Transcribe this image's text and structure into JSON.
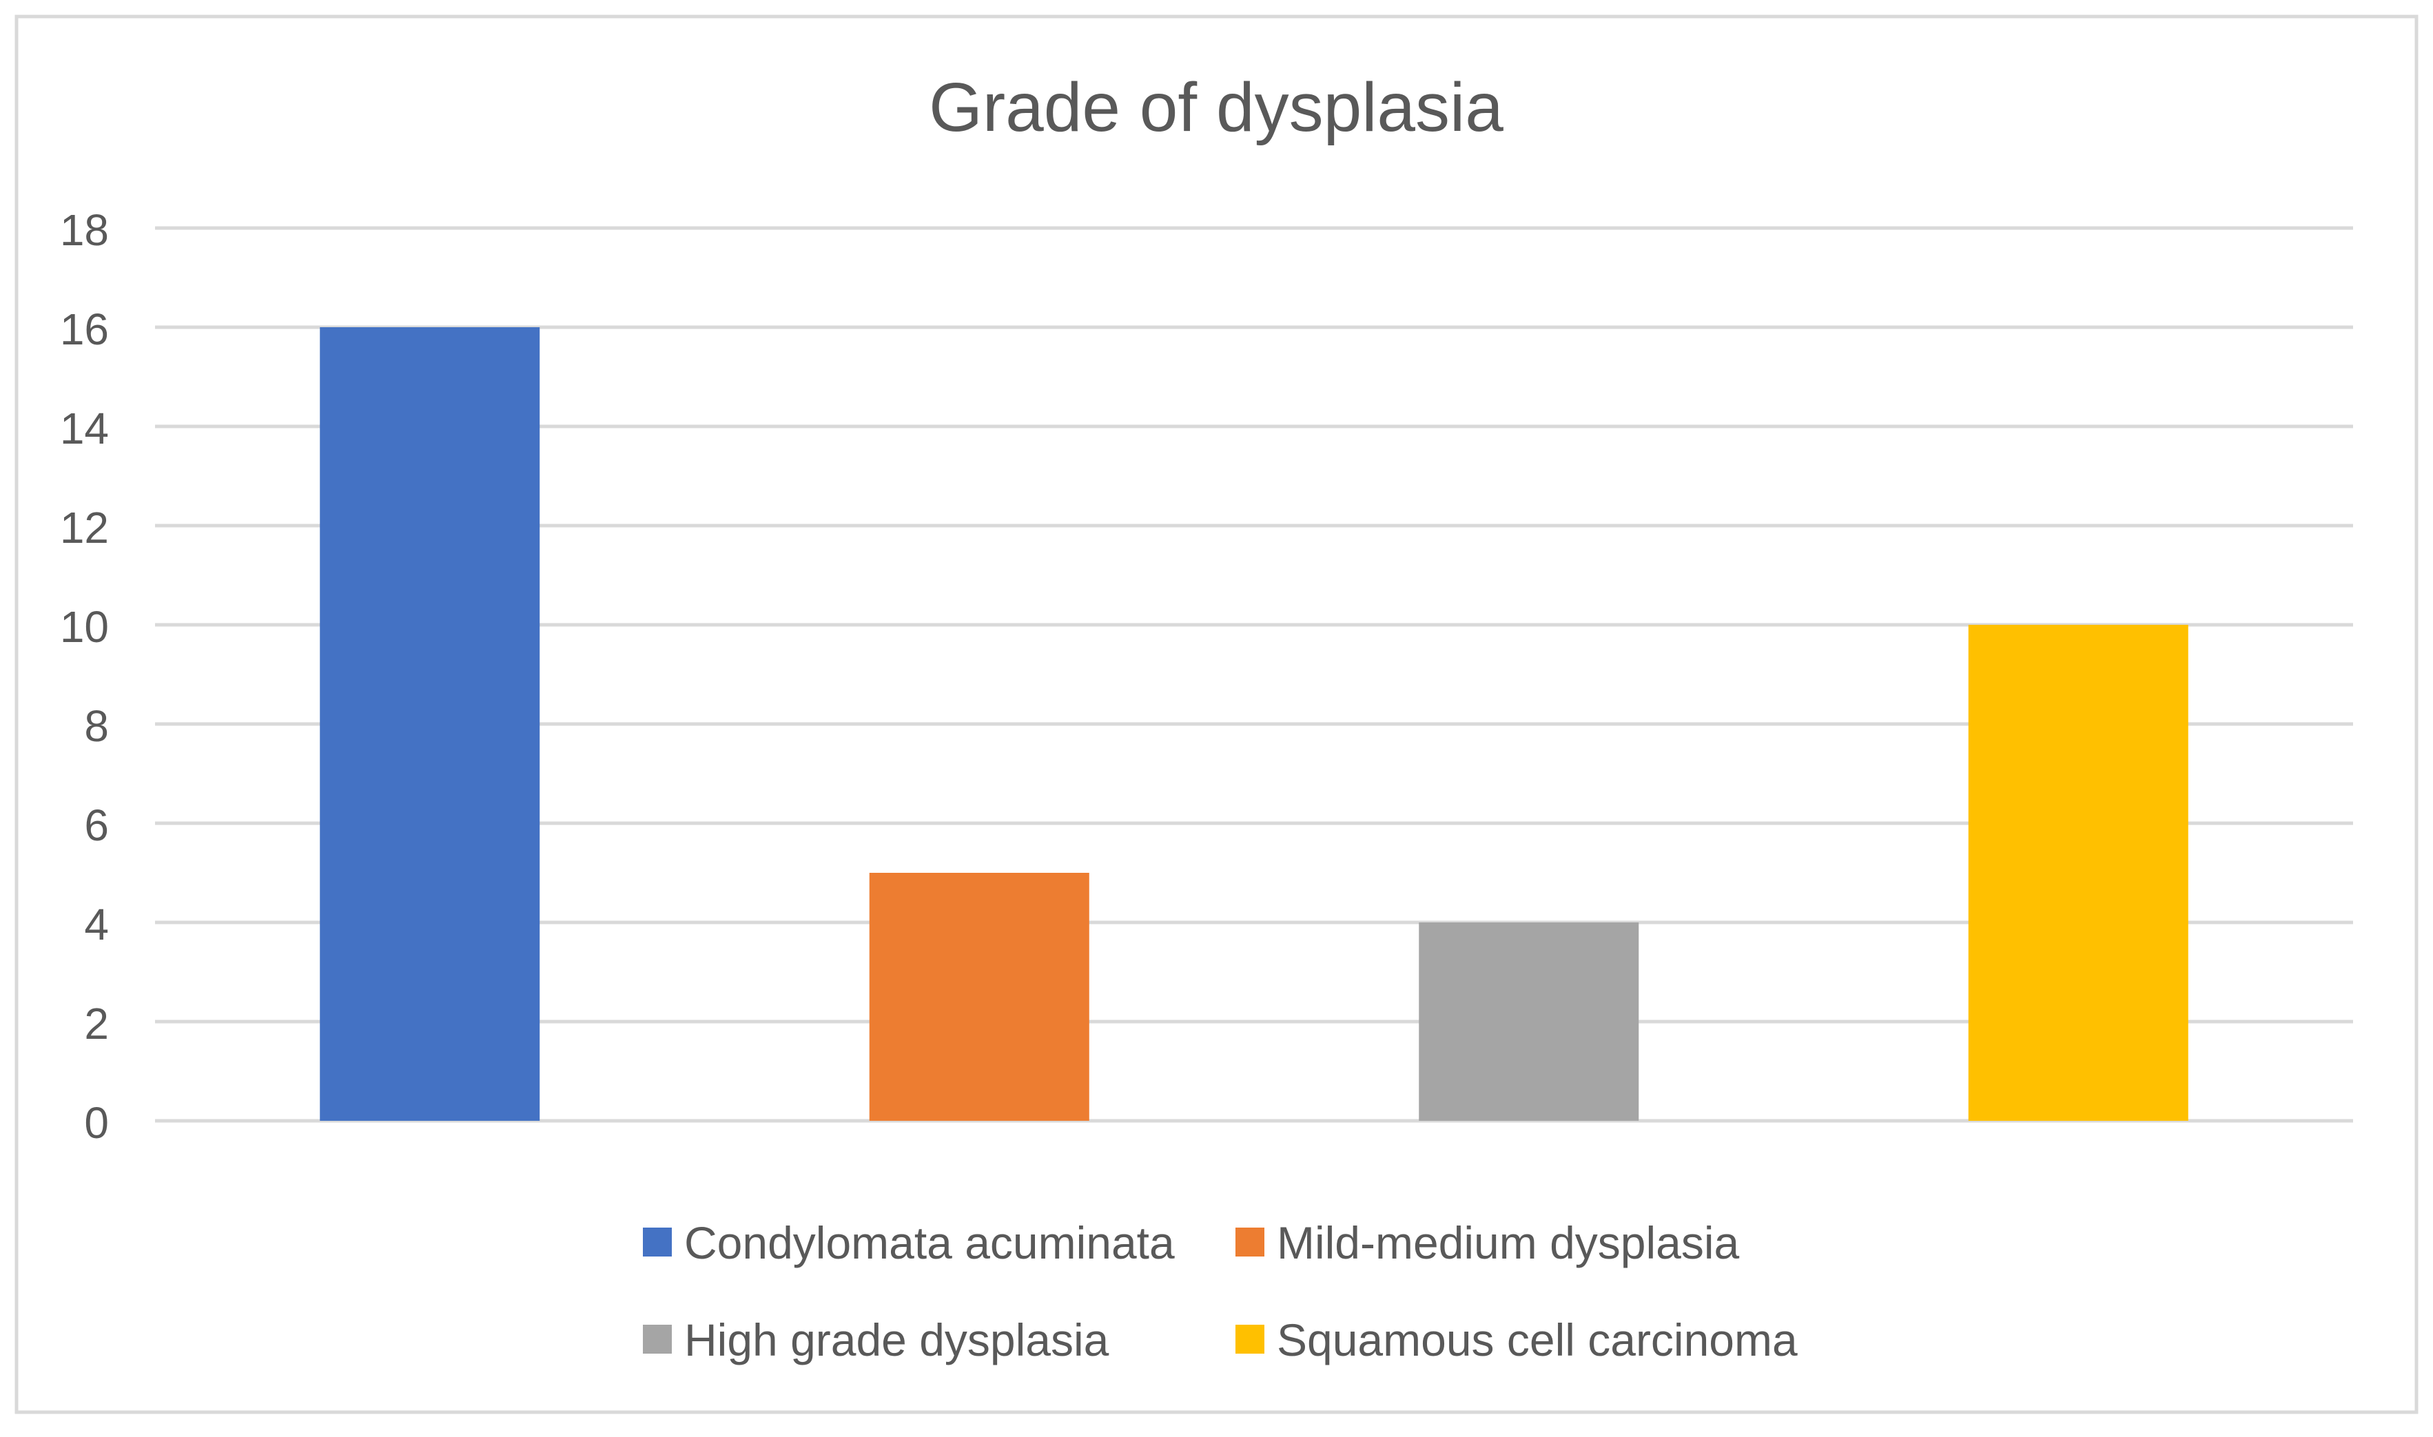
{
  "chart_data": {
    "type": "bar",
    "title": "Grade of dysplasia",
    "xlabel": "",
    "ylabel": "",
    "ylim": [
      0,
      18
    ],
    "yticks": [
      "0",
      "2",
      "4",
      "6",
      "8",
      "10",
      "12",
      "14",
      "16",
      "18"
    ],
    "grid": true,
    "legend_position": "bottom",
    "series": [
      {
        "name": "Condylomata acuminata",
        "value": 16,
        "color": "#4472C4"
      },
      {
        "name": "Mild-medium dysplasia",
        "value": 5,
        "color": "#ED7D31"
      },
      {
        "name": "High grade dysplasia",
        "value": 4,
        "color": "#A5A5A5"
      },
      {
        "name": "Squamous cell carcinoma",
        "value": 10,
        "color": "#FFC000"
      }
    ]
  },
  "colors": {
    "text": "#595959",
    "grid": "#D9D9D9",
    "border": "#D9D9D9"
  }
}
